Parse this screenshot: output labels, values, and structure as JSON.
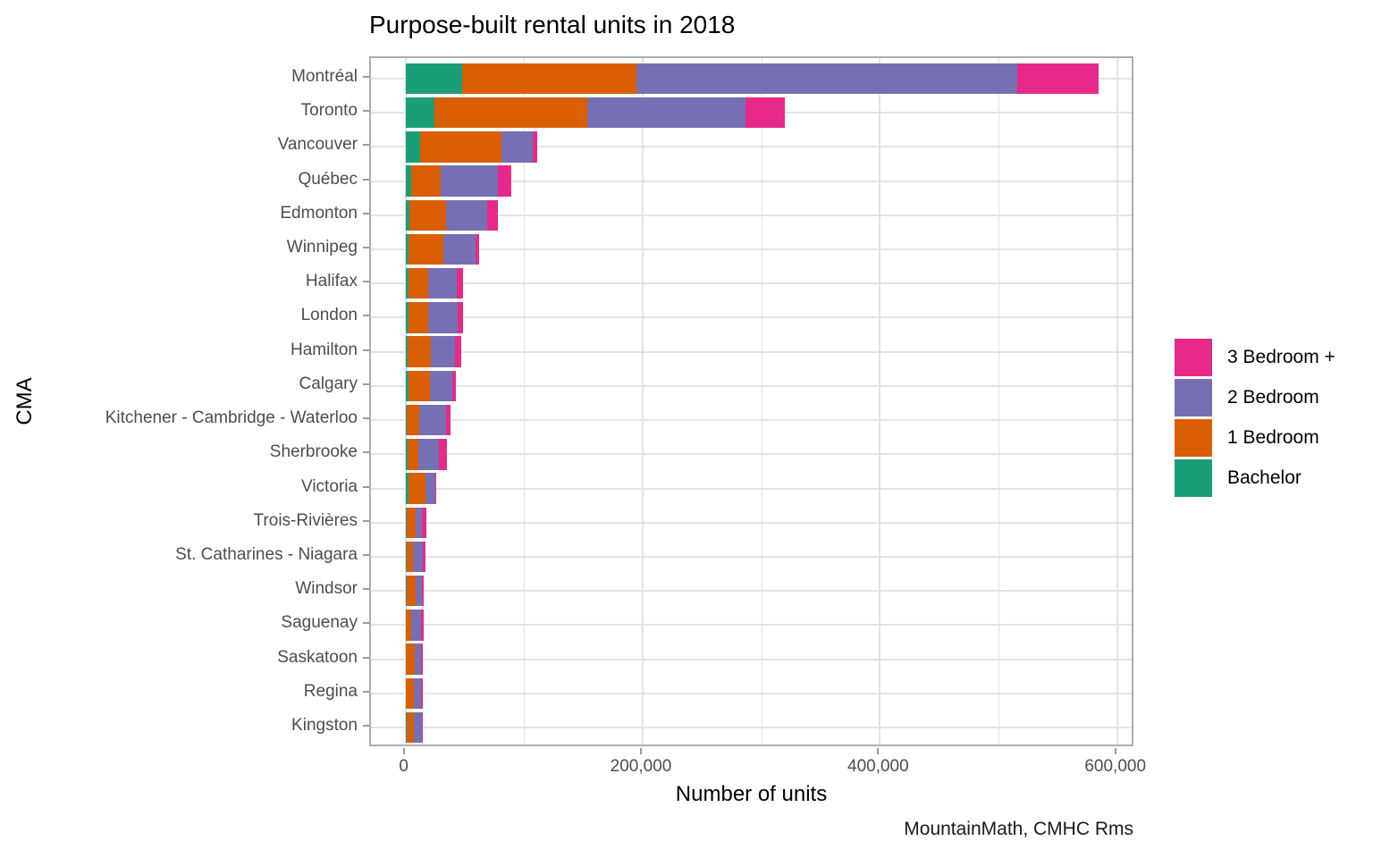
{
  "chart_data": {
    "type": "bar",
    "orientation": "horizontal",
    "stacked": true,
    "title": "Purpose-built rental units in 2018",
    "xlabel": "Number of units",
    "ylabel": "CMA",
    "caption": "MountainMath, CMHC Rms",
    "xlim": [
      0,
      600000
    ],
    "x_ticks": [
      0,
      200000,
      400000,
      600000
    ],
    "x_tick_labels": [
      "0",
      "200,000",
      "400,000",
      "600,000"
    ],
    "x_minor_ticks": [
      100000,
      300000,
      500000
    ],
    "grid": true,
    "legend_position": "right",
    "legend_order": [
      "3 Bedroom +",
      "2 Bedroom",
      "1 Bedroom",
      "Bachelor"
    ],
    "categories": [
      "Montréal",
      "Toronto",
      "Vancouver",
      "Québec",
      "Edmonton",
      "Winnipeg",
      "Halifax",
      "London",
      "Hamilton",
      "Calgary",
      "Kitchener - Cambridge - Waterloo",
      "Sherbrooke",
      "Victoria",
      "Trois-Rivières",
      "St. Catharines - Niagara",
      "Windsor",
      "Saguenay",
      "Saskatoon",
      "Regina",
      "Kingston"
    ],
    "series": [
      {
        "name": "Bachelor",
        "color": "#1B9E77",
        "values": [
          47500,
          24000,
          12000,
          5000,
          3500,
          2700,
          2500,
          2300,
          2000,
          2300,
          800,
          2000,
          2800,
          800,
          700,
          1200,
          500,
          500,
          500,
          1000
        ]
      },
      {
        "name": "1 Bedroom",
        "color": "#D95F02",
        "values": [
          147500,
          129500,
          69000,
          24500,
          30500,
          29000,
          16500,
          17000,
          19000,
          18000,
          11000,
          8500,
          13700,
          7500,
          5700,
          7600,
          4500,
          7100,
          6600,
          6000
        ]
      },
      {
        "name": "2 Bedroom",
        "color": "#7570B3",
        "values": [
          320500,
          133500,
          26500,
          48500,
          34500,
          27000,
          24500,
          24500,
          21000,
          19000,
          22000,
          17500,
          8300,
          5800,
          8300,
          5100,
          7800,
          5500,
          6000,
          6800
        ]
      },
      {
        "name": "3 Bedroom +",
        "color": "#E7298A",
        "values": [
          69000,
          33000,
          3500,
          11500,
          9000,
          3000,
          5000,
          4500,
          4700,
          3000,
          3800,
          7000,
          1200,
          3700,
          2300,
          1300,
          2300,
          1500,
          1300,
          500
        ]
      }
    ],
    "colors": {
      "bachelor": "#1B9E77",
      "one_bedroom": "#D95F02",
      "two_bedroom": "#7570B3",
      "three_bedroom_plus": "#E7298A",
      "gridline": "#e3e3e3",
      "panel_border": "#adadad",
      "axis_text": "#4d4d4d"
    }
  }
}
